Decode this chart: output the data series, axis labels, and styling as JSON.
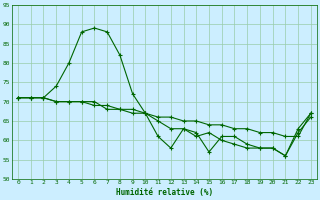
{
  "xlabel": "Humidité relative (%)",
  "bg_color": "#cceeff",
  "grid_color": "#99ccaa",
  "line_color": "#006600",
  "xlim": [
    -0.5,
    23.5
  ],
  "ylim": [
    50,
    95
  ],
  "xticks": [
    0,
    1,
    2,
    3,
    4,
    5,
    6,
    7,
    8,
    9,
    10,
    11,
    12,
    13,
    14,
    15,
    16,
    17,
    18,
    19,
    20,
    21,
    22,
    23
  ],
  "yticks": [
    50,
    55,
    60,
    65,
    70,
    75,
    80,
    85,
    90,
    95
  ],
  "line1_x": [
    0,
    1,
    2,
    3,
    4,
    5,
    6,
    7,
    8,
    9,
    10,
    11,
    12,
    13,
    14,
    15,
    16,
    17,
    18,
    19,
    20,
    21,
    22,
    23
  ],
  "line1_y": [
    71,
    71,
    71,
    74,
    80,
    88,
    89,
    88,
    82,
    72,
    67,
    61,
    58,
    63,
    62,
    57,
    61,
    61,
    59,
    58,
    58,
    56,
    63,
    67
  ],
  "line2_x": [
    0,
    1,
    2,
    3,
    4,
    5,
    6,
    7,
    8,
    9,
    10,
    11,
    12,
    13,
    14,
    15,
    16,
    17,
    18,
    19,
    20,
    21,
    22,
    23
  ],
  "line2_y": [
    71,
    71,
    71,
    70,
    70,
    70,
    69,
    69,
    68,
    68,
    67,
    66,
    66,
    65,
    65,
    64,
    64,
    63,
    63,
    62,
    62,
    61,
    61,
    67
  ],
  "line3_x": [
    0,
    1,
    2,
    3,
    4,
    5,
    6,
    7,
    8,
    9,
    10,
    11,
    12,
    13,
    14,
    15,
    16,
    17,
    18,
    19,
    20,
    21,
    22,
    23
  ],
  "line3_y": [
    71,
    71,
    71,
    70,
    70,
    70,
    70,
    68,
    68,
    67,
    67,
    65,
    63,
    63,
    61,
    62,
    60,
    59,
    58,
    58,
    58,
    56,
    62,
    66
  ]
}
